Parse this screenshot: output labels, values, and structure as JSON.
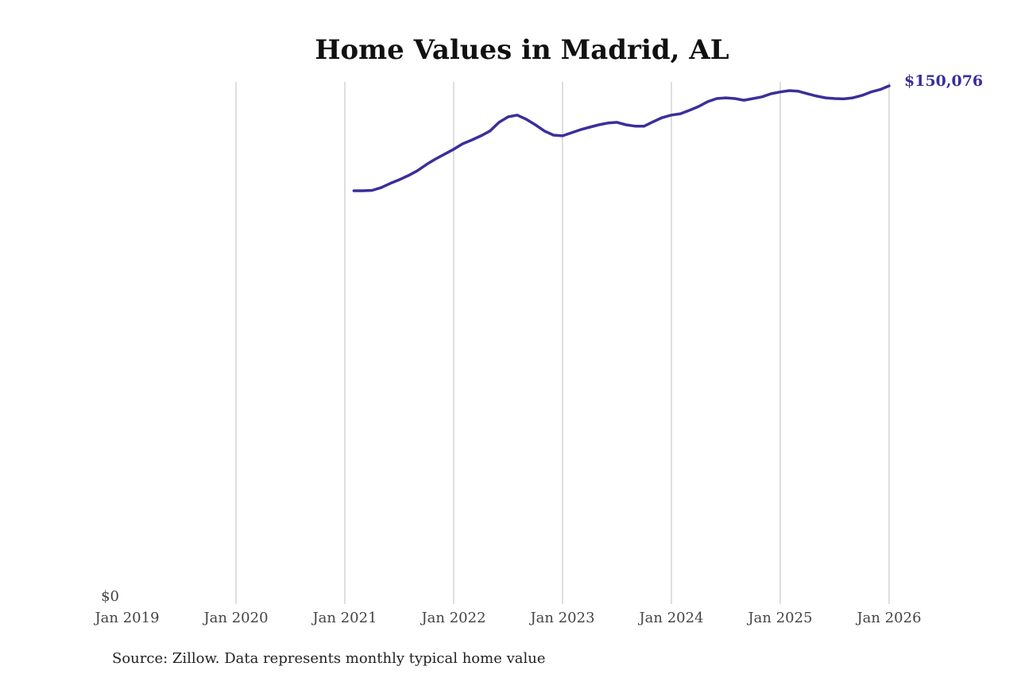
{
  "chart_data": {
    "type": "line",
    "title": "Home Values in Madrid, AL",
    "xlabel": "",
    "ylabel": "",
    "x_ticks": [
      "Jan 2019",
      "Jan 2020",
      "Jan 2021",
      "Jan 2022",
      "Jan 2023",
      "Jan 2024",
      "Jan 2025",
      "Jan 2026"
    ],
    "y_ticks": [
      "$0"
    ],
    "ylim": [
      0,
      150076
    ],
    "xlim": [
      "2019-01",
      "2026-01"
    ],
    "grid": "vertical",
    "color": "#3a2f9a",
    "end_label": "$150,076",
    "source": "Source: Zillow. Data represents monthly typical home value",
    "series": [
      {
        "name": "Typical home value",
        "x": [
          "2021-02",
          "2021-03",
          "2021-04",
          "2021-05",
          "2021-06",
          "2021-07",
          "2021-08",
          "2021-09",
          "2021-10",
          "2021-11",
          "2021-12",
          "2022-01",
          "2022-02",
          "2022-03",
          "2022-04",
          "2022-05",
          "2022-06",
          "2022-07",
          "2022-08",
          "2022-09",
          "2022-10",
          "2022-11",
          "2022-12",
          "2023-01",
          "2023-02",
          "2023-03",
          "2023-04",
          "2023-05",
          "2023-06",
          "2023-07",
          "2023-08",
          "2023-09",
          "2023-10",
          "2023-11",
          "2023-12",
          "2024-01",
          "2024-02",
          "2024-03",
          "2024-04",
          "2024-05",
          "2024-06",
          "2024-07",
          "2024-08",
          "2024-09",
          "2024-10",
          "2024-11",
          "2024-12",
          "2025-01",
          "2025-02",
          "2025-03",
          "2025-04",
          "2025-05",
          "2025-06",
          "2025-07",
          "2025-08",
          "2025-09",
          "2025-10",
          "2025-11",
          "2025-12",
          "2026-01"
        ],
        "values": [
          119700,
          119700,
          119800,
          120600,
          121800,
          122900,
          124100,
          125500,
          127300,
          128900,
          130300,
          131700,
          133300,
          134400,
          135600,
          137000,
          139500,
          141100,
          141600,
          140400,
          138800,
          137000,
          135800,
          135600,
          136500,
          137400,
          138100,
          138800,
          139300,
          139500,
          138800,
          138400,
          138400,
          139700,
          140900,
          141600,
          142000,
          143000,
          144100,
          145500,
          146400,
          146600,
          146400,
          145900,
          146400,
          146900,
          147800,
          148300,
          148700,
          148500,
          147800,
          147100,
          146600,
          146400,
          146300,
          146600,
          147300,
          148300,
          149000,
          150076
        ]
      }
    ]
  }
}
